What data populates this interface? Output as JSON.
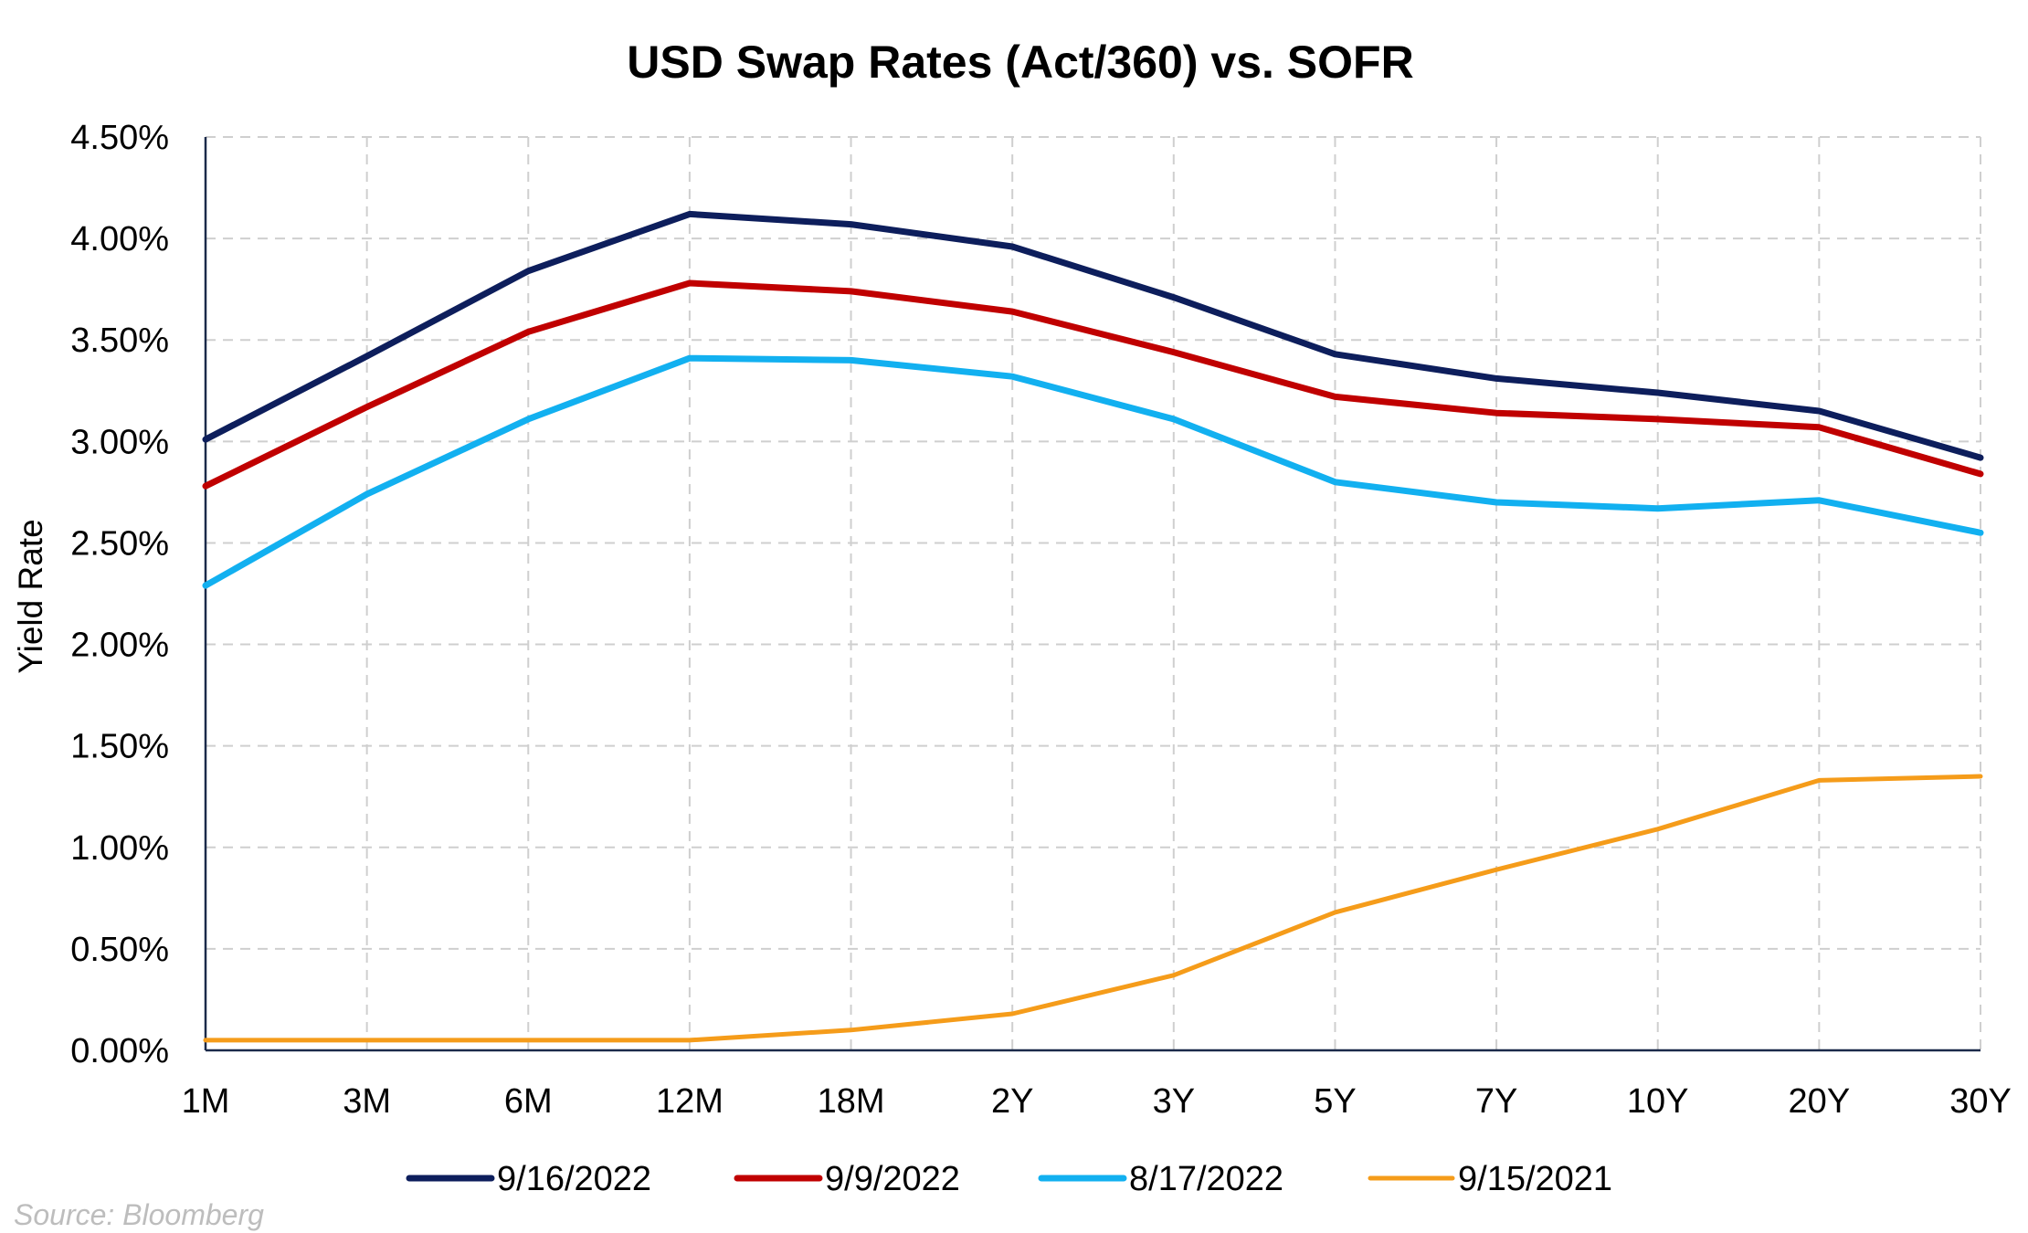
{
  "chart_data": {
    "type": "line",
    "title": "USD Swap Rates (Act/360) vs. SOFR",
    "xlabel": "",
    "ylabel": "Yield Rate",
    "categories": [
      "1M",
      "3M",
      "6M",
      "12M",
      "18M",
      "2Y",
      "3Y",
      "5Y",
      "7Y",
      "10Y",
      "20Y",
      "30Y"
    ],
    "ylim": [
      0,
      4.5
    ],
    "yticks": [
      0,
      0.5,
      1.0,
      1.5,
      2.0,
      2.5,
      3.0,
      3.5,
      4.0,
      4.5
    ],
    "ytick_labels": [
      "0.00%",
      "0.50%",
      "1.00%",
      "1.50%",
      "2.00%",
      "2.50%",
      "3.00%",
      "3.50%",
      "4.00%",
      "4.50%"
    ],
    "grid": true,
    "legend_position": "bottom",
    "series": [
      {
        "name": "9/16/2022",
        "color": "#0d1e5c",
        "values": [
          3.01,
          3.42,
          3.84,
          4.12,
          4.07,
          3.96,
          3.71,
          3.43,
          3.31,
          3.24,
          3.15,
          2.92
        ]
      },
      {
        "name": "9/9/2022",
        "color": "#c00000",
        "values": [
          2.78,
          3.17,
          3.54,
          3.78,
          3.74,
          3.64,
          3.44,
          3.22,
          3.14,
          3.11,
          3.07,
          2.84
        ]
      },
      {
        "name": "8/17/2022",
        "color": "#12b0f0",
        "values": [
          2.29,
          2.74,
          3.11,
          3.41,
          3.4,
          3.32,
          3.11,
          2.8,
          2.7,
          2.67,
          2.71,
          2.55
        ]
      },
      {
        "name": "9/15/2021",
        "color": "#f59c1a",
        "values": [
          0.05,
          0.05,
          0.05,
          0.05,
          0.1,
          0.18,
          0.37,
          0.68,
          0.89,
          1.09,
          1.33,
          1.35
        ]
      }
    ],
    "source": "Source: Bloomberg"
  }
}
